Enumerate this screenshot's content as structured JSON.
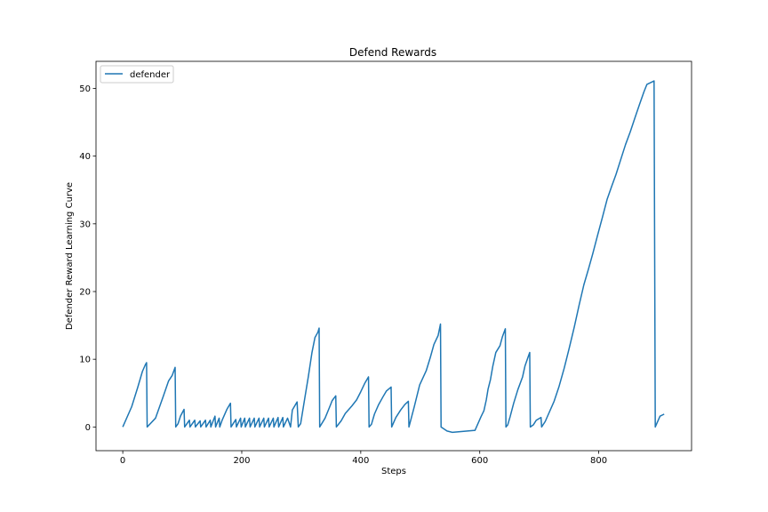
{
  "chart_data": {
    "type": "line",
    "title": "Defend Rewards",
    "xlabel": "Steps",
    "ylabel": "Defender Reward Learning Curve",
    "xlim": [
      -45,
      956
    ],
    "ylim": [
      -3.5,
      54
    ],
    "xticks": [
      0,
      200,
      400,
      600,
      800
    ],
    "yticks": [
      0,
      10,
      20,
      30,
      40,
      50
    ],
    "grid": false,
    "legend_position": "top-left",
    "series": [
      {
        "name": "defender",
        "color": "#1f77b4",
        "points": [
          [
            0,
            0
          ],
          [
            15,
            3.0
          ],
          [
            25,
            5.8
          ],
          [
            33,
            8.2
          ],
          [
            38,
            9.2
          ],
          [
            40,
            9.5
          ],
          [
            41,
            0
          ],
          [
            55,
            1.3
          ],
          [
            68,
            4.5
          ],
          [
            77,
            6.8
          ],
          [
            83,
            7.6
          ],
          [
            88,
            8.8
          ],
          [
            89,
            0
          ],
          [
            93,
            0.5
          ],
          [
            97,
            1.6
          ],
          [
            103,
            2.6
          ],
          [
            104,
            0
          ],
          [
            112,
            1.0
          ],
          [
            113,
            0
          ],
          [
            121,
            1.0
          ],
          [
            122,
            0
          ],
          [
            130,
            0.9
          ],
          [
            131,
            0
          ],
          [
            139,
            1.0
          ],
          [
            140,
            0
          ],
          [
            147,
            1.0
          ],
          [
            148,
            0
          ],
          [
            155,
            1.6
          ],
          [
            156,
            0
          ],
          [
            162,
            1.3
          ],
          [
            163,
            0
          ],
          [
            167,
            1.0
          ],
          [
            175,
            2.6
          ],
          [
            181,
            3.5
          ],
          [
            182,
            0
          ],
          [
            190,
            1.1
          ],
          [
            191,
            0
          ],
          [
            198,
            1.3
          ],
          [
            199,
            0
          ],
          [
            205,
            1.3
          ],
          [
            206,
            0
          ],
          [
            213,
            1.3
          ],
          [
            214,
            0
          ],
          [
            221,
            1.3
          ],
          [
            222,
            0
          ],
          [
            229,
            1.3
          ],
          [
            230,
            0
          ],
          [
            237,
            1.3
          ],
          [
            238,
            0
          ],
          [
            245,
            1.3
          ],
          [
            246,
            0
          ],
          [
            253,
            1.3
          ],
          [
            254,
            0
          ],
          [
            261,
            1.4
          ],
          [
            262,
            0
          ],
          [
            269,
            1.4
          ],
          [
            270,
            0
          ],
          [
            277,
            1.3
          ],
          [
            282,
            0
          ],
          [
            285,
            2.5
          ],
          [
            293,
            3.7
          ],
          [
            295,
            0
          ],
          [
            299,
            0.5
          ],
          [
            306,
            4.3
          ],
          [
            312,
            7.5
          ],
          [
            318,
            11
          ],
          [
            323,
            13.2
          ],
          [
            328,
            14
          ],
          [
            330,
            14.6
          ],
          [
            331,
            0
          ],
          [
            340,
            1.3
          ],
          [
            347,
            2.8
          ],
          [
            352,
            3.9
          ],
          [
            358,
            4.6
          ],
          [
            359,
            0
          ],
          [
            367,
            0.9
          ],
          [
            374,
            2.0
          ],
          [
            385,
            3.1
          ],
          [
            393,
            4.0
          ],
          [
            400,
            5.2
          ],
          [
            407,
            6.5
          ],
          [
            413,
            7.4
          ],
          [
            414,
            0
          ],
          [
            418,
            0.4
          ],
          [
            423,
            1.9
          ],
          [
            430,
            3.3
          ],
          [
            437,
            4.4
          ],
          [
            443,
            5.3
          ],
          [
            451,
            5.9
          ],
          [
            452,
            0
          ],
          [
            459,
            1.4
          ],
          [
            467,
            2.5
          ],
          [
            474,
            3.3
          ],
          [
            480,
            3.8
          ],
          [
            481,
            0
          ],
          [
            490,
            3.0
          ],
          [
            499,
            6.2
          ],
          [
            510,
            8.3
          ],
          [
            517,
            10.3
          ],
          [
            523,
            12.2
          ],
          [
            530,
            13.5
          ],
          [
            534,
            15.2
          ],
          [
            535,
            0
          ],
          [
            545,
            -0.6
          ],
          [
            554,
            -0.8
          ],
          [
            592,
            -0.5
          ],
          [
            602,
            1.5
          ],
          [
            607,
            2.4
          ],
          [
            611,
            4.0
          ],
          [
            614,
            5.6
          ],
          [
            618,
            7.0
          ],
          [
            622,
            9.0
          ],
          [
            627,
            11.0
          ],
          [
            634,
            12.0
          ],
          [
            638,
            13.3
          ],
          [
            643,
            14.5
          ],
          [
            644,
            0
          ],
          [
            647,
            0.3
          ],
          [
            651,
            1.5
          ],
          [
            657,
            3.5
          ],
          [
            664,
            5.5
          ],
          [
            672,
            7.4
          ],
          [
            676,
            9.0
          ],
          [
            680,
            10.0
          ],
          [
            684,
            11.0
          ],
          [
            685,
            0
          ],
          [
            690,
            0.3
          ],
          [
            695,
            1.0
          ],
          [
            703,
            1.4
          ],
          [
            704,
            0
          ],
          [
            710,
            0.8
          ],
          [
            725,
            3.8
          ],
          [
            733,
            5.9
          ],
          [
            742,
            8.7
          ],
          [
            750,
            11.5
          ],
          [
            759,
            14.8
          ],
          [
            767,
            18.0
          ],
          [
            775,
            21.0
          ],
          [
            783,
            23.4
          ],
          [
            790,
            25.6
          ],
          [
            798,
            28.3
          ],
          [
            806,
            30.9
          ],
          [
            814,
            33.6
          ],
          [
            822,
            35.6
          ],
          [
            829,
            37.3
          ],
          [
            837,
            39.5
          ],
          [
            845,
            41.7
          ],
          [
            853,
            43.6
          ],
          [
            861,
            45.7
          ],
          [
            868,
            47.5
          ],
          [
            876,
            49.5
          ],
          [
            881,
            50.6
          ],
          [
            893,
            51.1
          ],
          [
            895,
            0
          ],
          [
            903,
            1.6
          ],
          [
            910,
            1.9
          ]
        ]
      }
    ]
  }
}
